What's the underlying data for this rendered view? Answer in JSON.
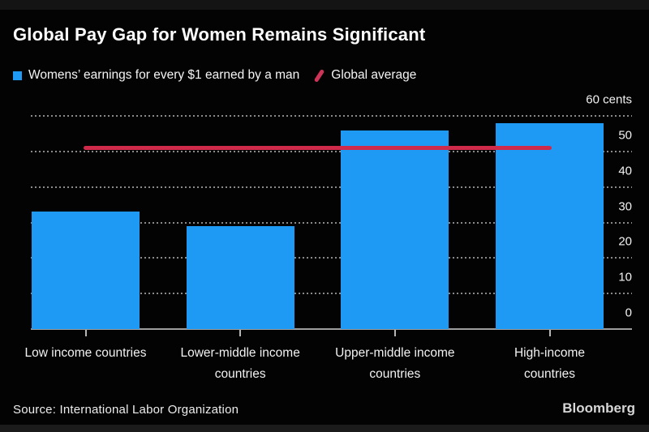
{
  "header": {
    "title": "Global Pay Gap for Women Remains Significant"
  },
  "legend": {
    "items": [
      {
        "label": "Womens’ earnings for every $1 earned by a man",
        "marker": "square-icon",
        "color": "#1e9af5"
      },
      {
        "label": "Global average",
        "marker": "slash-icon",
        "color": "#cd3458"
      }
    ]
  },
  "chart_data": {
    "type": "bar",
    "title": "Global Pay Gap for Women Remains Significant",
    "categories": [
      "Low income countries",
      "Lower-middle income countries",
      "Upper-middle income countries",
      "High-income countries"
    ],
    "category_lines": [
      [
        "Low income countries"
      ],
      [
        "Lower-middle income",
        "countries"
      ],
      [
        "Upper-middle income",
        "countries"
      ],
      [
        "High-income",
        "countries"
      ]
    ],
    "values": [
      33,
      29,
      56,
      58
    ],
    "xlabel": "",
    "ylabel": "cents",
    "ylim": [
      0,
      60
    ],
    "yticks": [
      {
        "value": 60,
        "label": "60 cents"
      },
      {
        "value": 50,
        "label": "50"
      },
      {
        "value": 40,
        "label": "40"
      },
      {
        "value": 30,
        "label": "30"
      },
      {
        "value": 20,
        "label": "20"
      },
      {
        "value": 10,
        "label": "10"
      },
      {
        "value": 0,
        "label": "0"
      }
    ],
    "grid": "dotted-horizontal",
    "axis_side": "right",
    "legend_position": "top",
    "bar_color": "#1e9af5",
    "reference_line": {
      "label": "Global average",
      "value": 51,
      "color": "#d02a4b"
    }
  },
  "footer": {
    "source": "Source: International Labor Organization",
    "brand": "Bloomberg"
  }
}
